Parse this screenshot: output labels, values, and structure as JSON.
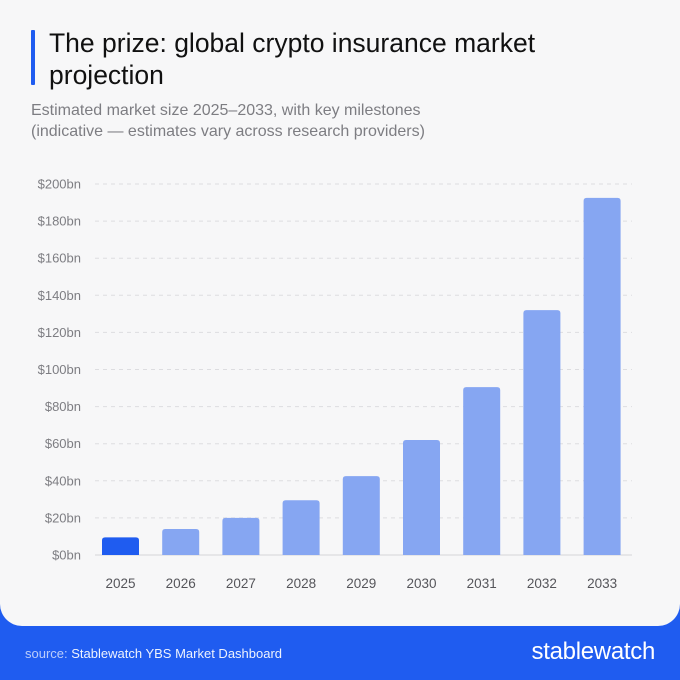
{
  "header": {
    "title": "The prize: global crypto insurance market projection",
    "subtitle_line1": "Estimated market size 2025–2033, with key milestones",
    "subtitle_line2": "(indicative — estimates vary across research providers)"
  },
  "footer": {
    "source_label": "source:",
    "source_text": "Stablewatch YBS Market Dashboard",
    "brand": "stablewatch"
  },
  "colors": {
    "accent": "#1f5cf0",
    "highlight_bar": "#1f5cf0",
    "bar": "#86a6f2",
    "background": "#f7f7f8"
  },
  "chart_data": {
    "type": "bar",
    "categories": [
      "2025",
      "2026",
      "2027",
      "2028",
      "2029",
      "2030",
      "2031",
      "2032",
      "2033"
    ],
    "values": [
      9.5,
      14,
      20,
      29.5,
      42.5,
      62,
      90.5,
      132,
      192.5
    ],
    "unit": "USD bn",
    "ylim": [
      0,
      200
    ],
    "yticks": [
      0,
      20,
      40,
      60,
      80,
      100,
      120,
      140,
      160,
      180,
      200
    ],
    "ytick_labels": [
      "$0bn",
      "$20bn",
      "$40bn",
      "$60bn",
      "$80bn",
      "$100bn",
      "$120bn",
      "$140bn",
      "$160bn",
      "$180bn",
      "$200bn"
    ],
    "highlight_category": "2025",
    "grid": true,
    "legend": "none"
  }
}
